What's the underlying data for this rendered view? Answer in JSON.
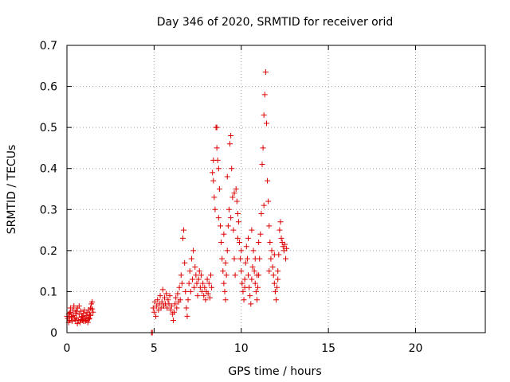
{
  "chart_data": {
    "type": "scatter",
    "title": "Day 346 of 2020, SRMTID for receiver orid",
    "xlabel": "GPS time / hours",
    "ylabel": "SRMTID / TECUs",
    "xlim": [
      0,
      24
    ],
    "ylim": [
      0,
      0.7
    ],
    "xticks": [
      0,
      5,
      10,
      15,
      20
    ],
    "yticks": [
      0,
      0.1,
      0.2,
      0.3,
      0.4,
      0.5,
      0.6,
      0.7
    ],
    "xtick_labels": [
      "0",
      "5",
      "10",
      "15",
      "20"
    ],
    "ytick_labels": [
      "0",
      "0.1",
      "0.2",
      "0.3",
      "0.4",
      "0.5",
      "0.6",
      "0.7"
    ],
    "grid": true,
    "marker": "plus",
    "series": [
      {
        "name": "SRMTID",
        "color": "#dd0000",
        "points": [
          [
            0.0,
            0.04
          ],
          [
            0.05,
            0.035
          ],
          [
            0.1,
            0.045
          ],
          [
            0.15,
            0.03
          ],
          [
            0.2,
            0.05
          ],
          [
            0.25,
            0.038
          ],
          [
            0.3,
            0.028
          ],
          [
            0.35,
            0.055
          ],
          [
            0.4,
            0.042
          ],
          [
            0.45,
            0.033
          ],
          [
            0.5,
            0.048
          ],
          [
            0.55,
            0.036
          ],
          [
            0.6,
            0.06
          ],
          [
            0.65,
            0.03
          ],
          [
            0.7,
            0.045
          ],
          [
            0.75,
            0.025
          ],
          [
            0.8,
            0.052
          ],
          [
            0.85,
            0.038
          ],
          [
            0.9,
            0.03
          ],
          [
            0.95,
            0.047
          ],
          [
            1.0,
            0.035
          ],
          [
            1.05,
            0.028
          ],
          [
            1.1,
            0.042
          ],
          [
            1.15,
            0.05
          ],
          [
            1.2,
            0.038
          ],
          [
            1.25,
            0.055
          ],
          [
            1.3,
            0.045
          ],
          [
            1.35,
            0.06
          ],
          [
            1.4,
            0.07
          ],
          [
            1.45,
            0.075
          ],
          [
            0.1,
            0.025
          ],
          [
            0.3,
            0.04
          ],
          [
            0.5,
            0.03
          ],
          [
            0.7,
            0.065
          ],
          [
            0.9,
            0.04
          ],
          [
            1.1,
            0.03
          ],
          [
            1.3,
            0.035
          ],
          [
            1.5,
            0.05
          ],
          [
            0.2,
            0.06
          ],
          [
            0.6,
            0.022
          ],
          [
            0.8,
            0.032
          ],
          [
            1.2,
            0.025
          ],
          [
            0.4,
            0.065
          ],
          [
            1.0,
            0.055
          ],
          [
            1.35,
            0.042
          ],
          [
            0.15,
            0.048
          ],
          [
            0.55,
            0.052
          ],
          [
            0.95,
            0.028
          ],
          [
            1.25,
            0.033
          ],
          [
            1.45,
            0.058
          ],
          [
            4.85,
            0.0
          ],
          [
            4.9,
            0.0
          ],
          [
            4.95,
            0.06
          ],
          [
            5.0,
            0.05
          ],
          [
            5.05,
            0.075
          ],
          [
            5.1,
            0.04
          ],
          [
            5.15,
            0.065
          ],
          [
            5.2,
            0.08
          ],
          [
            5.25,
            0.055
          ],
          [
            5.3,
            0.07
          ],
          [
            5.35,
            0.09
          ],
          [
            5.4,
            0.06
          ],
          [
            5.45,
            0.075
          ],
          [
            5.5,
            0.105
          ],
          [
            5.55,
            0.065
          ],
          [
            5.6,
            0.085
          ],
          [
            5.65,
            0.07
          ],
          [
            5.7,
            0.095
          ],
          [
            5.75,
            0.06
          ],
          [
            5.8,
            0.08
          ],
          [
            5.85,
            0.07
          ],
          [
            5.9,
            0.09
          ],
          [
            5.95,
            0.055
          ],
          [
            6.0,
            0.065
          ],
          [
            6.05,
            0.045
          ],
          [
            6.1,
            0.03
          ],
          [
            6.15,
            0.05
          ],
          [
            6.2,
            0.07
          ],
          [
            6.25,
            0.085
          ],
          [
            6.3,
            0.06
          ],
          [
            6.35,
            0.095
          ],
          [
            6.4,
            0.075
          ],
          [
            6.45,
            0.11
          ],
          [
            6.5,
            0.08
          ],
          [
            6.55,
            0.14
          ],
          [
            6.6,
            0.12
          ],
          [
            6.65,
            0.23
          ],
          [
            6.7,
            0.25
          ],
          [
            6.75,
            0.17
          ],
          [
            6.8,
            0.1
          ],
          [
            6.85,
            0.06
          ],
          [
            6.9,
            0.04
          ],
          [
            6.95,
            0.08
          ],
          [
            7.0,
            0.12
          ],
          [
            7.05,
            0.15
          ],
          [
            7.1,
            0.1
          ],
          [
            7.15,
            0.18
          ],
          [
            7.2,
            0.13
          ],
          [
            7.25,
            0.2
          ],
          [
            7.3,
            0.11
          ],
          [
            7.35,
            0.16
          ],
          [
            7.4,
            0.14
          ],
          [
            7.45,
            0.12
          ],
          [
            7.5,
            0.09
          ],
          [
            7.55,
            0.13
          ],
          [
            7.6,
            0.15
          ],
          [
            7.65,
            0.11
          ],
          [
            7.7,
            0.14
          ],
          [
            7.75,
            0.1
          ],
          [
            7.8,
            0.12
          ],
          [
            7.85,
            0.09
          ],
          [
            7.9,
            0.11
          ],
          [
            7.95,
            0.08
          ],
          [
            8.0,
            0.1
          ],
          [
            8.05,
            0.13
          ],
          [
            8.1,
            0.095
          ],
          [
            8.15,
            0.12
          ],
          [
            8.2,
            0.085
          ],
          [
            8.25,
            0.14
          ],
          [
            8.3,
            0.11
          ],
          [
            8.35,
            0.39
          ],
          [
            8.4,
            0.37
          ],
          [
            8.45,
            0.33
          ],
          [
            8.5,
            0.3
          ],
          [
            8.55,
            0.5
          ],
          [
            8.6,
            0.45
          ],
          [
            8.65,
            0.42
          ],
          [
            8.7,
            0.4
          ],
          [
            8.75,
            0.35
          ],
          [
            8.8,
            0.26
          ],
          [
            8.85,
            0.22
          ],
          [
            8.9,
            0.18
          ],
          [
            8.95,
            0.15
          ],
          [
            9.0,
            0.12
          ],
          [
            9.05,
            0.1
          ],
          [
            9.1,
            0.08
          ],
          [
            9.15,
            0.14
          ],
          [
            9.2,
            0.2
          ],
          [
            9.25,
            0.26
          ],
          [
            9.3,
            0.3
          ],
          [
            9.35,
            0.46
          ],
          [
            9.4,
            0.48
          ],
          [
            9.45,
            0.4
          ],
          [
            9.5,
            0.33
          ],
          [
            9.55,
            0.25
          ],
          [
            9.6,
            0.18
          ],
          [
            9.65,
            0.14
          ],
          [
            9.7,
            0.35
          ],
          [
            9.75,
            0.32
          ],
          [
            9.8,
            0.29
          ],
          [
            9.85,
            0.27
          ],
          [
            9.9,
            0.22
          ],
          [
            9.95,
            0.18
          ],
          [
            10.0,
            0.15
          ],
          [
            10.05,
            0.12
          ],
          [
            10.1,
            0.1
          ],
          [
            10.15,
            0.08
          ],
          [
            10.2,
            0.13
          ],
          [
            10.25,
            0.17
          ],
          [
            10.3,
            0.21
          ],
          [
            10.35,
            0.18
          ],
          [
            10.4,
            0.14
          ],
          [
            10.45,
            0.11
          ],
          [
            10.5,
            0.09
          ],
          [
            10.55,
            0.07
          ],
          [
            10.6,
            0.13
          ],
          [
            10.65,
            0.16
          ],
          [
            10.7,
            0.2
          ],
          [
            10.75,
            0.15
          ],
          [
            10.8,
            0.12
          ],
          [
            10.85,
            0.1
          ],
          [
            10.9,
            0.08
          ],
          [
            10.95,
            0.11
          ],
          [
            11.0,
            0.14
          ],
          [
            11.05,
            0.18
          ],
          [
            11.1,
            0.24
          ],
          [
            11.15,
            0.29
          ],
          [
            11.2,
            0.41
          ],
          [
            11.25,
            0.45
          ],
          [
            11.3,
            0.53
          ],
          [
            11.35,
            0.58
          ],
          [
            11.4,
            0.635
          ],
          [
            11.45,
            0.51
          ],
          [
            11.5,
            0.37
          ],
          [
            11.55,
            0.32
          ],
          [
            11.6,
            0.26
          ],
          [
            11.65,
            0.22
          ],
          [
            11.7,
            0.18
          ],
          [
            11.75,
            0.2
          ],
          [
            11.8,
            0.16
          ],
          [
            11.85,
            0.14
          ],
          [
            11.9,
            0.12
          ],
          [
            11.95,
            0.1
          ],
          [
            12.0,
            0.08
          ],
          [
            12.05,
            0.11
          ],
          [
            12.1,
            0.15
          ],
          [
            12.15,
            0.19
          ],
          [
            12.2,
            0.25
          ],
          [
            12.25,
            0.27
          ],
          [
            12.3,
            0.23
          ],
          [
            12.35,
            0.22
          ],
          [
            12.4,
            0.21
          ],
          [
            12.45,
            0.2
          ],
          [
            12.5,
            0.215
          ],
          [
            12.55,
            0.18
          ],
          [
            12.6,
            0.205
          ],
          [
            8.4,
            0.42
          ],
          [
            8.6,
            0.5
          ],
          [
            8.7,
            0.28
          ],
          [
            9.0,
            0.24
          ],
          [
            9.2,
            0.38
          ],
          [
            9.6,
            0.34
          ],
          [
            9.8,
            0.23
          ],
          [
            10.0,
            0.2
          ],
          [
            10.2,
            0.11
          ],
          [
            10.6,
            0.25
          ],
          [
            10.8,
            0.18
          ],
          [
            11.0,
            0.22
          ],
          [
            11.3,
            0.31
          ],
          [
            11.6,
            0.15
          ],
          [
            11.9,
            0.19
          ],
          [
            12.1,
            0.13
          ],
          [
            9.1,
            0.17
          ],
          [
            9.4,
            0.28
          ],
          [
            10.4,
            0.23
          ],
          [
            10.9,
            0.14
          ]
        ]
      }
    ]
  }
}
